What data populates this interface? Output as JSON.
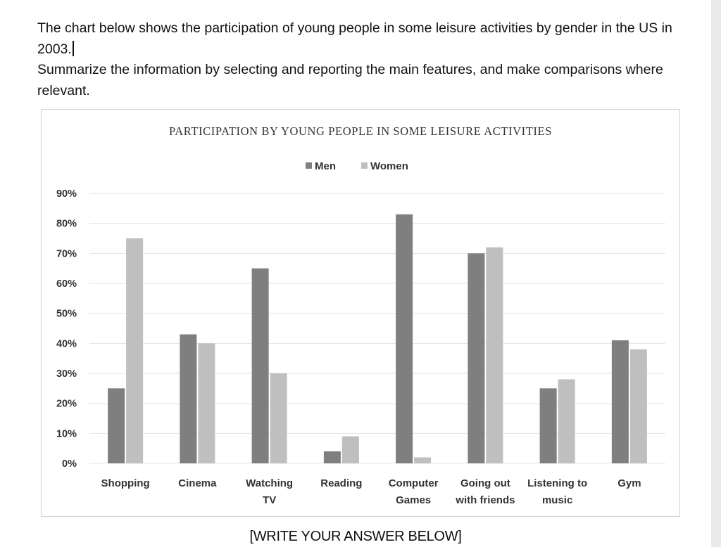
{
  "prompt": {
    "line1": "The chart below shows the participation of young people in some leisure activities by gender in the US in 2003.",
    "line2": "Summarize the information by selecting and reporting the main features, and make comparisons where relevant."
  },
  "footer": "[WRITE YOUR ANSWER BELOW]",
  "colors": {
    "men": "#7f7f7f",
    "women": "#bfbfbf",
    "grid": "#e3e3e3",
    "text": "#333333"
  },
  "chart_data": {
    "type": "bar",
    "title": "PARTICIPATION BY YOUNG PEOPLE IN SOME LEISURE ACTIVITIES",
    "categories": [
      [
        "Shopping"
      ],
      [
        "Cinema"
      ],
      [
        "Watching",
        "TV"
      ],
      [
        "Reading"
      ],
      [
        "Computer",
        "Games"
      ],
      [
        "Going out",
        "with friends"
      ],
      [
        "Listening to",
        "music"
      ],
      [
        "Gym"
      ]
    ],
    "series": [
      {
        "name": "Men",
        "values": [
          25,
          43,
          65,
          4,
          83,
          70,
          25,
          41
        ]
      },
      {
        "name": "Women",
        "values": [
          75,
          40,
          30,
          9,
          2,
          72,
          28,
          38
        ]
      }
    ],
    "yticks": [
      "0%",
      "10%",
      "20%",
      "30%",
      "40%",
      "50%",
      "60%",
      "70%",
      "80%",
      "90%"
    ],
    "ylim": [
      0,
      90
    ],
    "grid": true,
    "legend": "top-center"
  }
}
